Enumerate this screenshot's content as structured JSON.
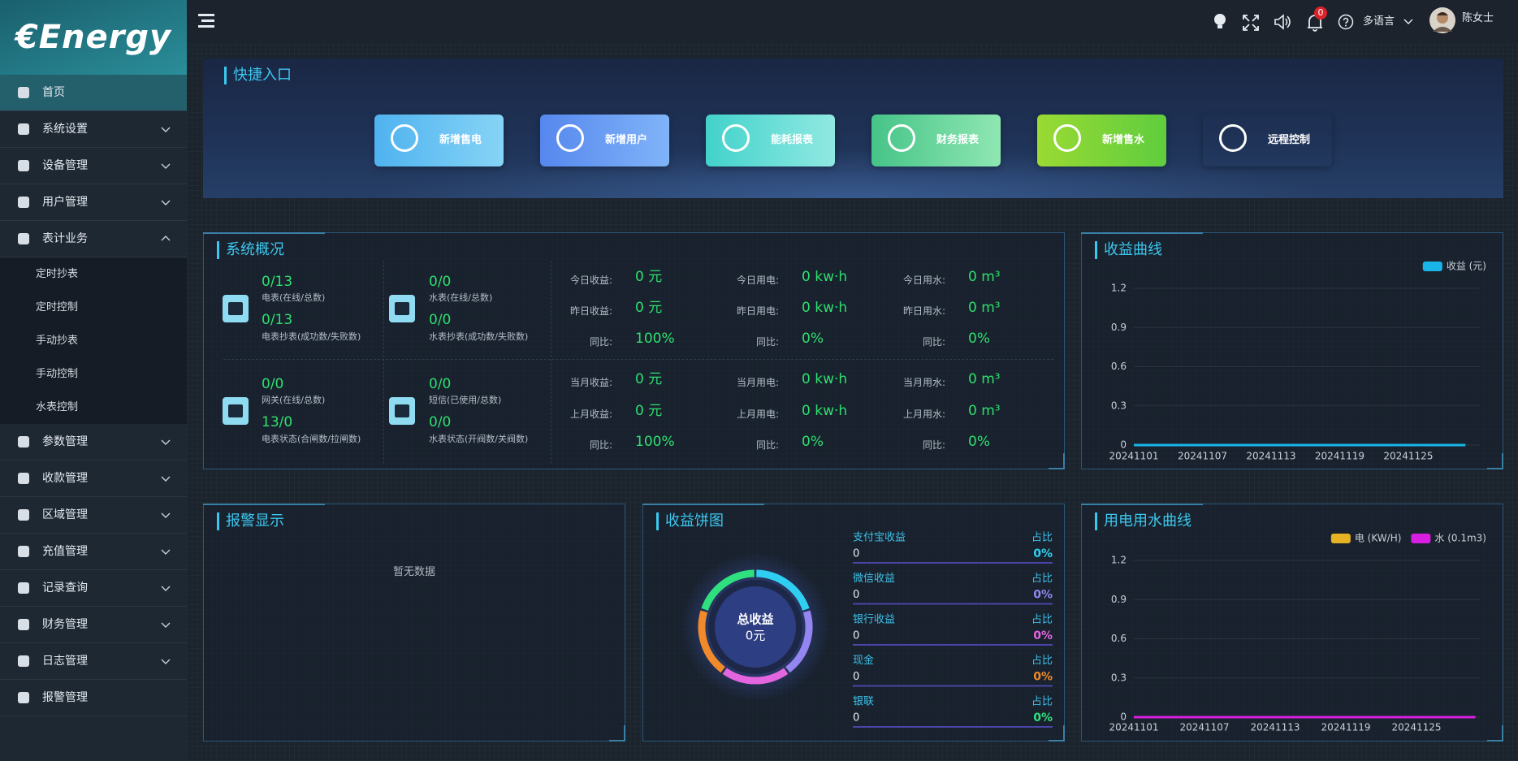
{
  "logo": "€Energy",
  "menu": [
    {
      "label": "首页",
      "active": true
    },
    {
      "label": "系统设置",
      "expandable": true
    },
    {
      "label": "设备管理",
      "expandable": true
    },
    {
      "label": "用户管理",
      "expandable": true
    },
    {
      "label": "表计业务",
      "expandable": true,
      "expanded": true,
      "children": [
        "定时抄表",
        "定时控制",
        "手动抄表",
        "手动控制",
        "水表控制"
      ]
    },
    {
      "label": "参数管理",
      "expandable": true
    },
    {
      "label": "收款管理",
      "expandable": true
    },
    {
      "label": "区域管理",
      "expandable": true
    },
    {
      "label": "充值管理",
      "expandable": true
    },
    {
      "label": "记录查询",
      "expandable": true
    },
    {
      "label": "财务管理",
      "expandable": true
    },
    {
      "label": "日志管理",
      "expandable": true
    },
    {
      "label": "报警管理"
    }
  ],
  "header": {
    "notifications": 0,
    "language": "多语言",
    "user": "陈女士"
  },
  "quick_entry": {
    "title": "快捷入口",
    "buttons": [
      "新增售电",
      "新增用户",
      "能耗报表",
      "财务报表",
      "新增售水",
      "远程控制"
    ]
  },
  "overview": {
    "title": "系统概况",
    "meters": [
      [
        {
          "value": "0/13",
          "label": "电表(在线/总数)"
        },
        {
          "value": "0/13",
          "label": "电表抄表(成功数/失败数)"
        }
      ],
      [
        {
          "value": "0/0",
          "label": "水表(在线/总数)"
        },
        {
          "value": "0/0",
          "label": "水表抄表(成功数/失败数)"
        }
      ],
      [
        {
          "value": "0/0",
          "label": "网关(在线/总数)"
        },
        {
          "value": "13/0",
          "label": "电表状态(合闸数/拉闸数)"
        }
      ],
      [
        {
          "value": "0/0",
          "label": "短信(已使用/总数)"
        },
        {
          "value": "0/0",
          "label": "水表状态(开阀数/关阀数)"
        }
      ]
    ],
    "stats": [
      [
        {
          "label": "今日收益:",
          "value": "0",
          "unit": "元"
        },
        {
          "label": "今日用电:",
          "value": "0",
          "unit": "kw·h"
        },
        {
          "label": "今日用水:",
          "value": "0",
          "unit": "m³"
        }
      ],
      [
        {
          "label": "昨日收益:",
          "value": "0",
          "unit": "元"
        },
        {
          "label": "昨日用电:",
          "value": "0",
          "unit": "kw·h"
        },
        {
          "label": "昨日用水:",
          "value": "0",
          "unit": "m³"
        }
      ],
      [
        {
          "label": "同比:",
          "value": "100%"
        },
        {
          "label": "同比:",
          "value": "0%"
        },
        {
          "label": "同比:",
          "value": "0%"
        }
      ],
      [
        {
          "label": "当月收益:",
          "value": "0",
          "unit": "元"
        },
        {
          "label": "当月用电:",
          "value": "0",
          "unit": "kw·h"
        },
        {
          "label": "当月用水:",
          "value": "0",
          "unit": "m³"
        }
      ],
      [
        {
          "label": "上月收益:",
          "value": "0",
          "unit": "元"
        },
        {
          "label": "上月用电:",
          "value": "0",
          "unit": "kw·h"
        },
        {
          "label": "上月用水:",
          "value": "0",
          "unit": "m³"
        }
      ],
      [
        {
          "label": "同比:",
          "value": "100%"
        },
        {
          "label": "同比:",
          "value": "0%"
        },
        {
          "label": "同比:",
          "value": "0%"
        }
      ]
    ]
  },
  "alarm": {
    "title": "报警显示",
    "empty": "暂无数据"
  },
  "chart_data": [
    {
      "type": "line",
      "title": "收益曲线",
      "categories": [
        "20241101",
        null,
        null,
        null,
        null,
        null,
        "20241107",
        null,
        null,
        null,
        null,
        null,
        "20241113",
        null,
        null,
        null,
        null,
        null,
        "20241119",
        null,
        null,
        null,
        null,
        null,
        "20241125",
        null,
        null,
        null,
        null,
        null
      ],
      "series": [
        {
          "name": "收益 (元)",
          "color": "#19b5e8",
          "values": [
            0,
            0,
            0,
            0,
            0,
            0,
            0,
            0,
            0,
            0,
            0,
            0,
            0,
            0,
            0,
            0,
            0,
            0,
            0,
            0,
            0,
            0,
            0,
            0,
            0,
            0,
            0,
            0,
            0,
            0
          ]
        }
      ],
      "ylim": [
        0,
        1.2
      ],
      "yticks": [
        0,
        0.3,
        0.6,
        0.9,
        1.2
      ],
      "grid": true,
      "legend": "top-right"
    },
    {
      "type": "pie",
      "title": "收益饼图",
      "center_title": "总收益",
      "center_value": "0元",
      "categories": [
        "支付宝收益",
        "微信收益",
        "银行收益",
        "现金",
        "银联"
      ],
      "values": [
        0,
        0,
        0,
        0,
        0
      ],
      "share_heading": "占比",
      "shares": [
        0,
        0,
        0,
        0,
        0
      ],
      "share_labels": [
        "0%",
        "0%",
        "0%",
        "0%",
        "0%"
      ],
      "colors": [
        "#2fcff2",
        "#9486f2",
        "#e465e0",
        "#f08a2a",
        "#2fe07f"
      ]
    },
    {
      "type": "line",
      "title": "用电用水曲线",
      "categories": [
        "20241101",
        null,
        null,
        null,
        null,
        null,
        "20241107",
        null,
        null,
        null,
        null,
        null,
        "20241113",
        null,
        null,
        null,
        null,
        null,
        "20241119",
        null,
        null,
        null,
        null,
        null,
        "20241125",
        null,
        null,
        null,
        null,
        null
      ],
      "series": [
        {
          "name": "电 (KW/H)",
          "color": "#e6b422",
          "values": [
            0,
            0,
            0,
            0,
            0,
            0,
            0,
            0,
            0,
            0,
            0,
            0,
            0,
            0,
            0,
            0,
            0,
            0,
            0,
            0,
            0,
            0,
            0,
            0,
            0,
            0,
            0,
            0,
            0,
            0
          ]
        },
        {
          "name": "水 (0.1m3)",
          "color": "#d81ee0",
          "values": [
            0,
            0,
            0,
            0,
            0,
            0,
            0,
            0,
            0,
            0,
            0,
            0,
            0,
            0,
            0,
            0,
            0,
            0,
            0,
            0,
            0,
            0,
            0,
            0,
            0,
            0,
            0,
            0,
            0,
            0
          ]
        }
      ],
      "ylim": [
        0,
        1.2
      ],
      "yticks": [
        0,
        0.3,
        0.6,
        0.9,
        1.2
      ],
      "grid": true,
      "legend": "top-right"
    }
  ]
}
